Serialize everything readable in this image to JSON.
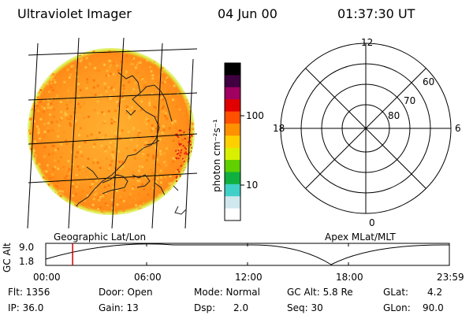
{
  "header": {
    "title": "Ultraviolet Imager",
    "date": "04 Jun 00",
    "time": "01:37:30 UT"
  },
  "colorbar": {
    "label": "photon cm⁻²s⁻¹",
    "ticks": [
      "100",
      "10"
    ],
    "colors": [
      "#ffffff",
      "#cfe8ee",
      "#40d0c8",
      "#10b040",
      "#60d000",
      "#d8f000",
      "#ffd000",
      "#ff9000",
      "#ff5000",
      "#e00000",
      "#a00060",
      "#400040",
      "#000000"
    ]
  },
  "image_panel": {
    "caption": "Geographic Lat/Lon",
    "globe_color": "#ffa020"
  },
  "polar_panel": {
    "caption": "Apex MLat/MLT",
    "mlt_labels": {
      "top": "12",
      "bottom": "0",
      "left": "18",
      "right": "6"
    },
    "lat_labels": [
      "60",
      "70",
      "80"
    ]
  },
  "orbit_plot": {
    "ylabel": "GC Alt",
    "y_ticks": [
      "9.0",
      "1.8"
    ],
    "x_ticks": [
      "00:00",
      "06:00",
      "12:00",
      "18:00",
      "23:59"
    ],
    "marker_time_hours": 1.6,
    "marker_color": "#d00000"
  },
  "info": {
    "row1": {
      "flt": "Flt: 1356",
      "door": "Door: Open",
      "mode": "Mode: Normal",
      "gcalt": "GC Alt: 5.8 Re",
      "glat_label": "GLat:",
      "glat_value": "4.2"
    },
    "row2": {
      "ip": "IP: 36.0",
      "gain": "Gain: 13",
      "dsp": "Dsp:      2.0",
      "seq": "Seq: 30",
      "glon_label": "GLon:",
      "glon_value": "90.0"
    }
  }
}
